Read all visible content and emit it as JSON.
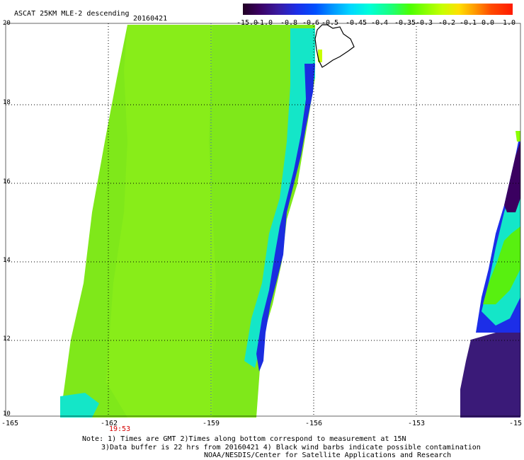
{
  "title": "ASCAT 25KM MLE-2 descending",
  "date": "20160421",
  "colorbar": {
    "labels": [
      "-15.0",
      "-1.0",
      "-0.8",
      "-0.6",
      "-0.5",
      "-0.45",
      "-0.4",
      "-0.35",
      "-0.3",
      "-0.2",
      "-0.1",
      "0.0",
      "1.0"
    ],
    "colors": [
      "#220024",
      "#3a0060",
      "#1c2ee8",
      "#0094ff",
      "#00ffd8",
      "#4cff00",
      "#c8ff00",
      "#ffe000",
      "#ff9a00",
      "#ff1a00"
    ]
  },
  "latitude_labels": [
    "20",
    "18",
    "16",
    "14",
    "12",
    "10"
  ],
  "longitude_labels": [
    "-165",
    "-162",
    "-159",
    "-156",
    "-153",
    "-15"
  ],
  "time_label": "19:53",
  "notes": [
    "Note: 1) Times are GMT 2)Times along bottom correspond to measurement at 15N",
    "3)Data buffer is 22 hrs from 20160421 4) Black wind barbs indicate possible contamination",
    "NOAA/NESDIS/Center for Satellite Applications and Research"
  ]
}
